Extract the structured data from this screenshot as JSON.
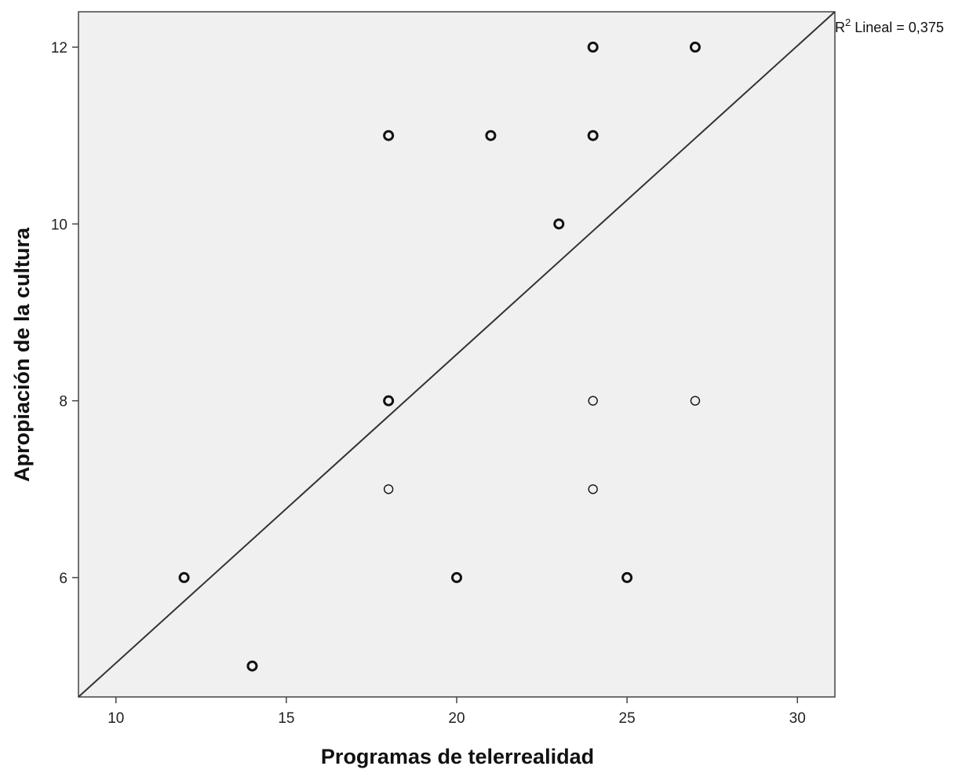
{
  "chart_data": {
    "type": "scatter",
    "xlabel": "Programas de telerrealidad",
    "ylabel": "Apropiación de la cultura",
    "xlim": [
      8.9,
      31.1
    ],
    "ylim": [
      4.65,
      12.4
    ],
    "x_ticks": [
      10,
      15,
      20,
      25,
      30
    ],
    "y_ticks": [
      6,
      8,
      10,
      12
    ],
    "grid": false,
    "background_color": "#f0f0f0",
    "marker_color": "#111111",
    "line_color": "#333333",
    "points": [
      {
        "x": 24,
        "y": 12,
        "bold": true
      },
      {
        "x": 27,
        "y": 12,
        "bold": true
      },
      {
        "x": 18,
        "y": 11,
        "bold": true
      },
      {
        "x": 21,
        "y": 11,
        "bold": true
      },
      {
        "x": 24,
        "y": 11,
        "bold": true
      },
      {
        "x": 23,
        "y": 10,
        "bold": true
      },
      {
        "x": 18,
        "y": 8,
        "bold": true
      },
      {
        "x": 24,
        "y": 8,
        "bold": false
      },
      {
        "x": 27,
        "y": 8,
        "bold": false
      },
      {
        "x": 18,
        "y": 7,
        "bold": false
      },
      {
        "x": 24,
        "y": 7,
        "bold": false
      },
      {
        "x": 12,
        "y": 6,
        "bold": true
      },
      {
        "x": 20,
        "y": 6,
        "bold": true
      },
      {
        "x": 25,
        "y": 6,
        "bold": true
      },
      {
        "x": 14,
        "y": 5,
        "bold": true
      }
    ],
    "fit_line": {
      "type": "linear",
      "start": {
        "x": 8.9,
        "y": 4.65
      },
      "end": {
        "x": 31.1,
        "y": 12.4
      },
      "label_prefix": "R",
      "label_sup": "2",
      "label_suffix": " Lineal = 0,375"
    }
  }
}
